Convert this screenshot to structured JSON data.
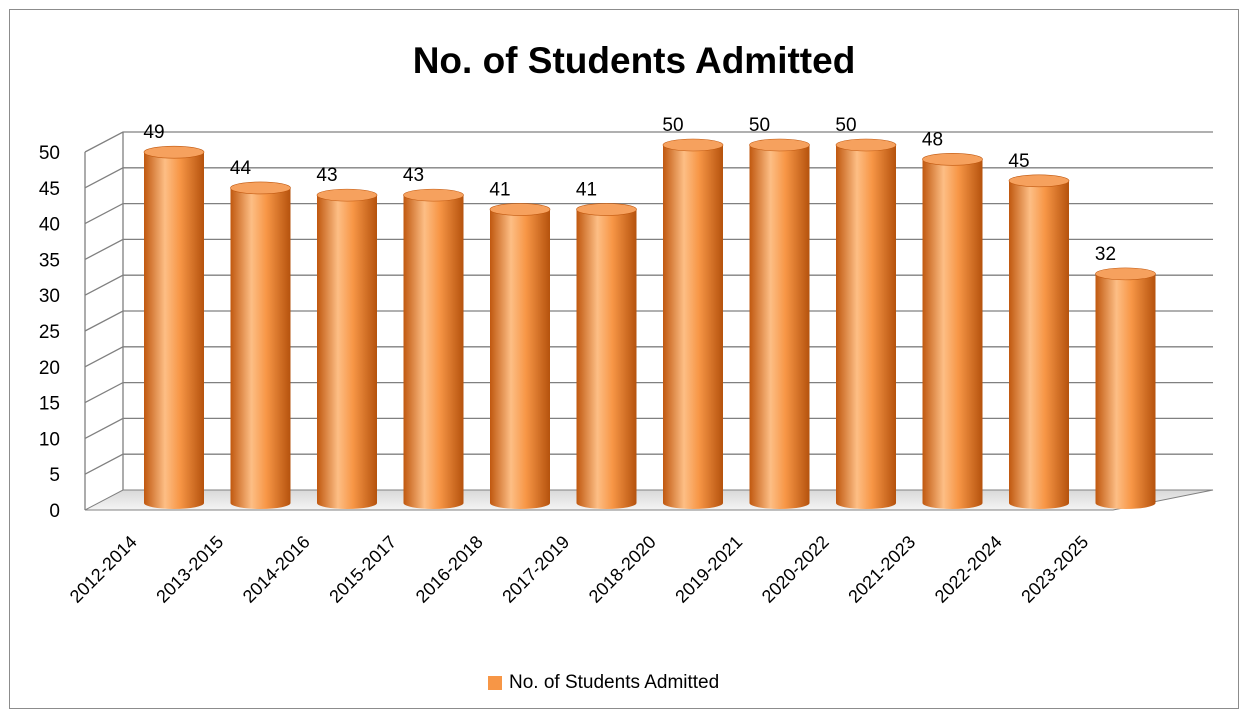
{
  "chart_data": {
    "type": "bar",
    "title": "No. of Students Admitted",
    "categories": [
      "2012-2014",
      "2013-2015",
      "2014-2016",
      "2015-2017",
      "2016-2018",
      "2017-2019",
      "2018-2020",
      "2019-2021",
      "2020-2022",
      "2021-2023",
      "2022-2024",
      "2023-2025"
    ],
    "series": [
      {
        "name": "No. of Students Admitted",
        "values": [
          49,
          44,
          43,
          43,
          41,
          41,
          50,
          50,
          50,
          48,
          45,
          32
        ]
      }
    ],
    "ylim": [
      0,
      50
    ],
    "yticks": [
      0,
      5,
      10,
      15,
      20,
      25,
      30,
      35,
      40,
      45,
      50
    ],
    "grid": true,
    "legend_position": "bottom",
    "style": "3d-cylinder",
    "colors": {
      "bar": "#F79646",
      "bar_light": "#FDC08A",
      "bar_dark": "#C0580F",
      "grid": "#808080"
    }
  }
}
